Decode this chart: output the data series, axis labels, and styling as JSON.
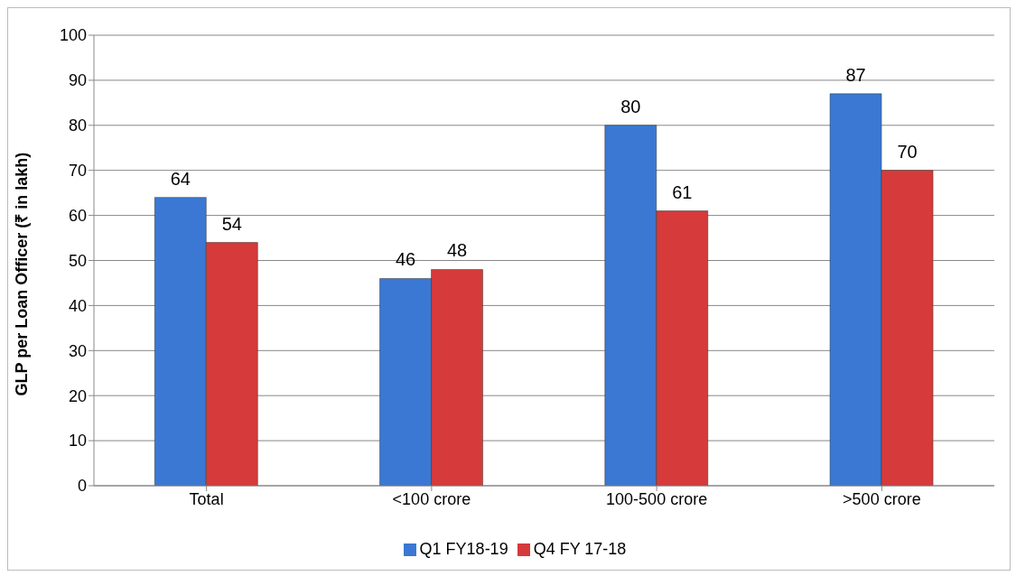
{
  "chart_data": {
    "type": "bar",
    "ylabel": "GLP per Loan Officer (₹ in lakh)",
    "categories": [
      "Total",
      "<100 crore",
      "100-500 crore",
      ">500 crore"
    ],
    "series": [
      {
        "name": "Q1 FY18-19",
        "color": "#3a78d4",
        "values": [
          64,
          46,
          80,
          87
        ]
      },
      {
        "name": "Q4 FY 17-18",
        "color": "#d63a3a",
        "values": [
          54,
          48,
          61,
          70
        ]
      }
    ],
    "ylim": [
      0,
      100
    ],
    "yticks": [
      0,
      10,
      20,
      30,
      40,
      50,
      60,
      70,
      80,
      90,
      100
    ],
    "grid": "y",
    "legend": "bottom",
    "data_labels": true
  }
}
